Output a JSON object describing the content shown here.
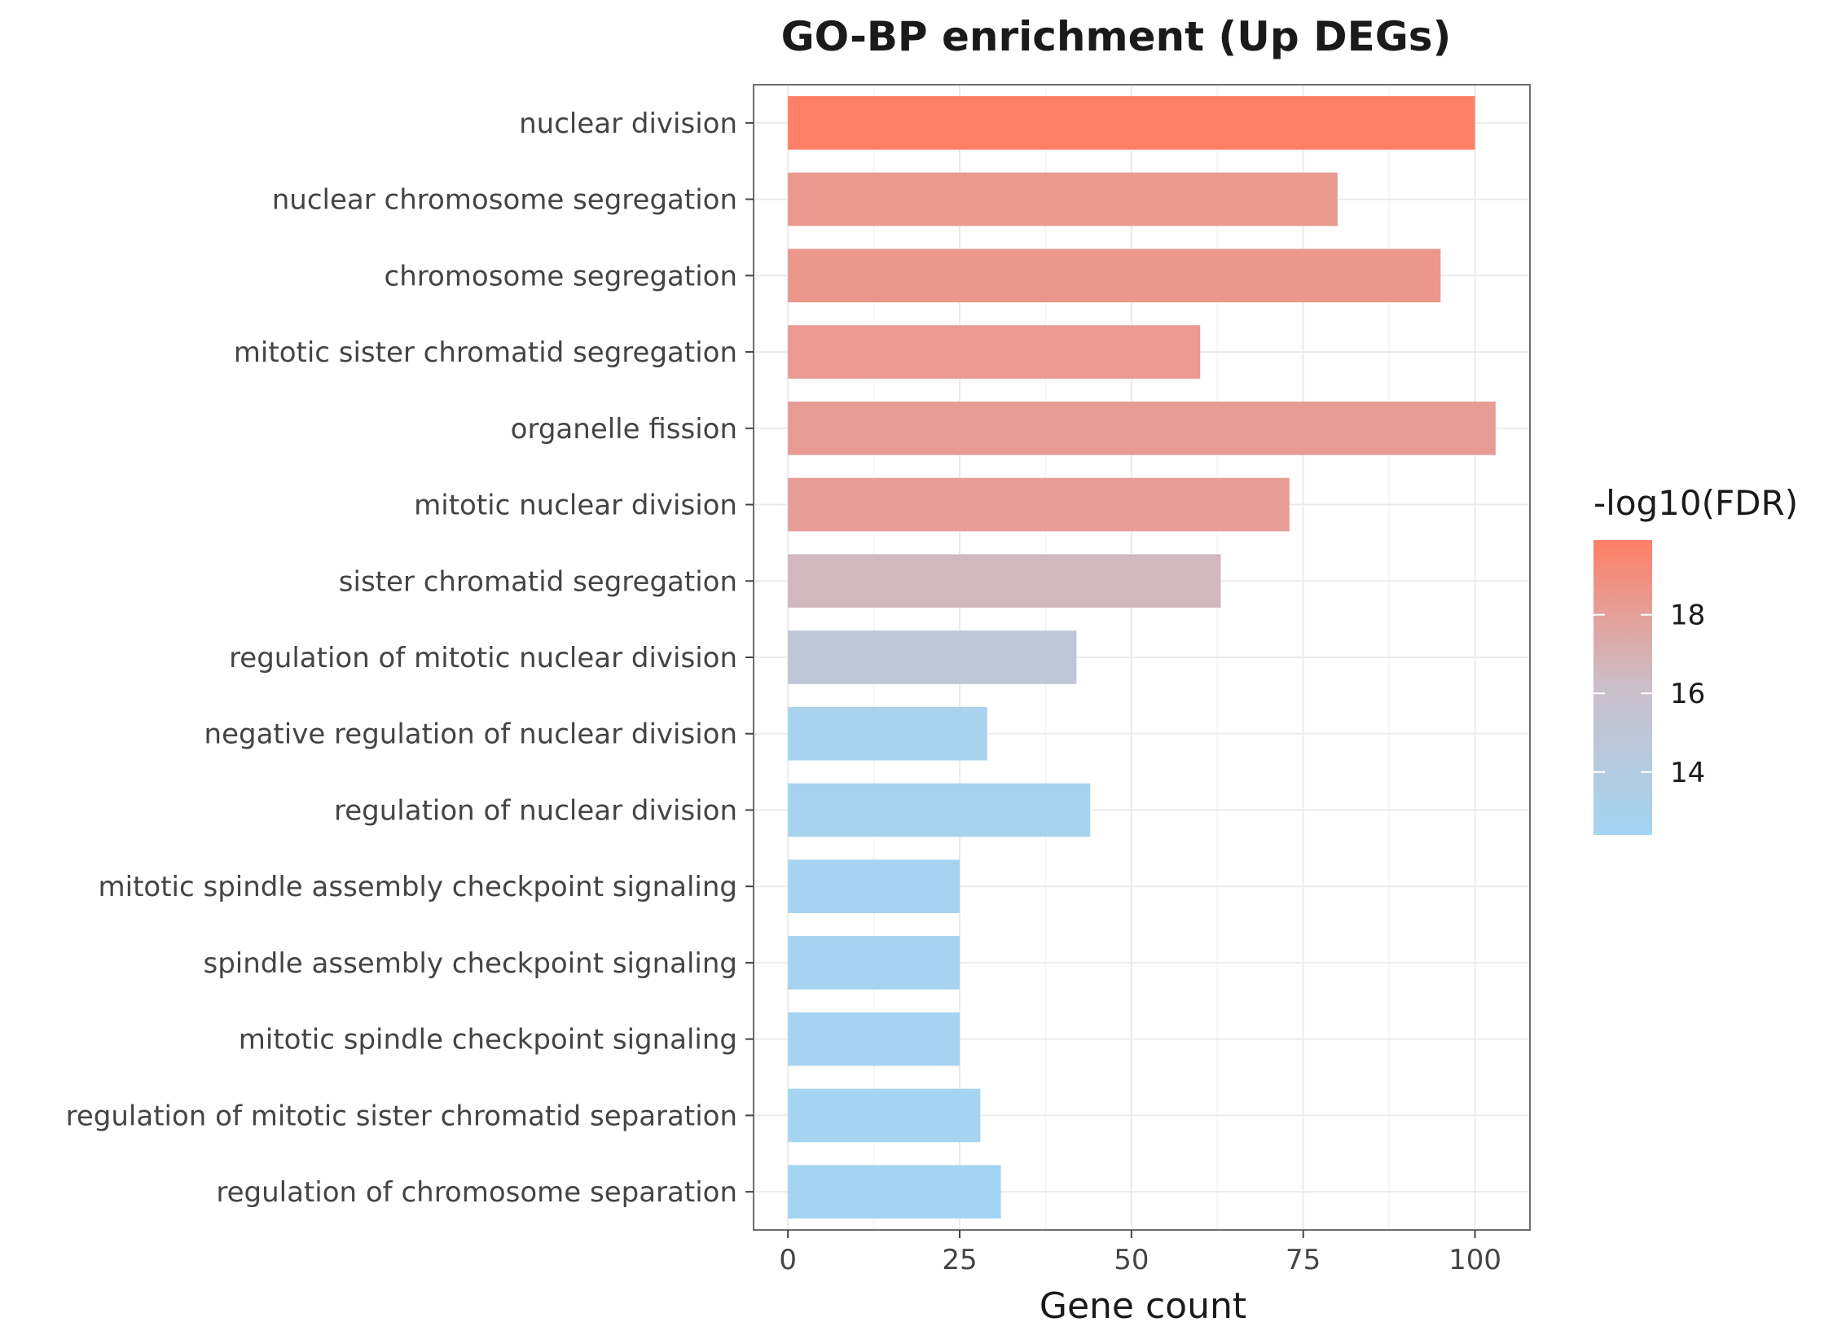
{
  "chart_data": {
    "type": "bar",
    "orientation": "horizontal",
    "title": "GO-BP enrichment (Up DEGs)",
    "xlabel": "Gene count",
    "ylabel": "",
    "xlim": [
      -5,
      108
    ],
    "xticks": [
      0,
      25,
      50,
      75,
      100
    ],
    "grid": true,
    "categories": [
      "nuclear division",
      "nuclear chromosome segregation",
      "chromosome segregation",
      "mitotic sister chromatid segregation",
      "organelle fission",
      "mitotic nuclear division",
      "sister chromatid segregation",
      "regulation of mitotic nuclear division",
      "negative regulation of nuclear division",
      "regulation of nuclear division",
      "mitotic spindle assembly checkpoint signaling",
      "spindle assembly checkpoint signaling",
      "mitotic spindle checkpoint signaling",
      "regulation of mitotic sister chromatid separation",
      "regulation of chromosome separation"
    ],
    "values": [
      100,
      80,
      95,
      60,
      103,
      73,
      63,
      42,
      29,
      44,
      25,
      25,
      25,
      28,
      31
    ],
    "color_values": [
      19.9,
      18.4,
      18.5,
      18.3,
      18.2,
      18.1,
      16.6,
      15.0,
      12.9,
      12.8,
      12.7,
      12.7,
      12.7,
      12.6,
      12.5
    ],
    "legend": {
      "title": "-log10(FDR)",
      "position": "right",
      "min": 12.4,
      "max": 19.9,
      "ticks": [
        14,
        16,
        18
      ],
      "color_low": "#a3d5f2",
      "color_mid": "#cbbfca",
      "color_high": "#ff7f66"
    }
  }
}
